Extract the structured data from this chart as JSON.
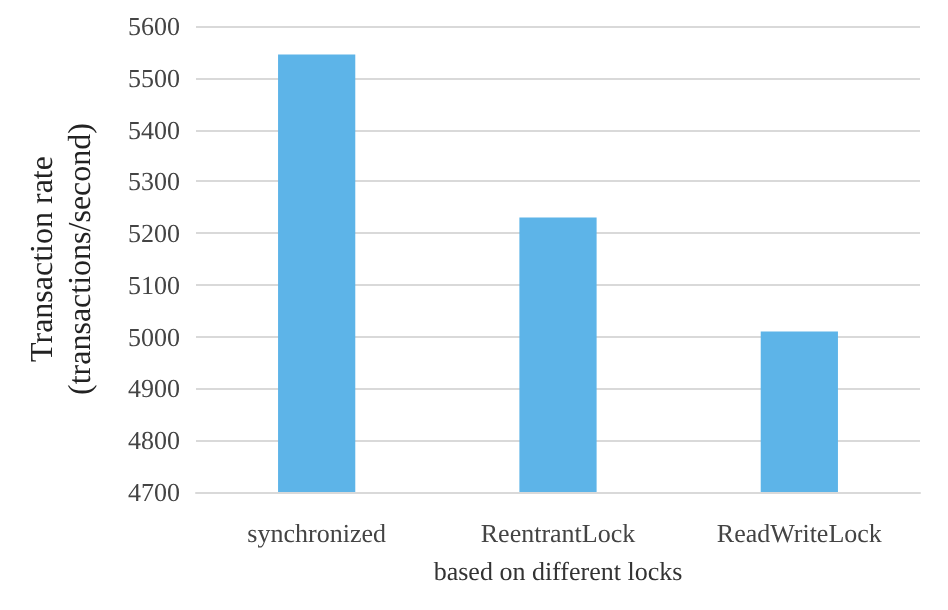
{
  "chart_data": {
    "type": "bar",
    "xlabel": "based on different locks",
    "ylabel": "Transaction rate\n(transactions/second)",
    "categories": [
      "synchronized",
      "ReentrantLock",
      "ReadWriteLock"
    ],
    "values": [
      5545,
      5230,
      5010
    ],
    "color": "#5db4e8",
    "ylim": [
      4700,
      5600
    ],
    "yticks": [
      4700,
      4800,
      4900,
      5000,
      5100,
      5200,
      5300,
      5400,
      5500,
      5600
    ],
    "grid": "y"
  }
}
